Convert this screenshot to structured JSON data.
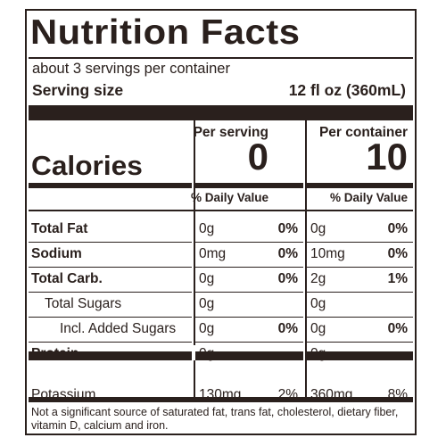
{
  "title": "Nutrition Facts",
  "servings_per_container": "about 3 servings per container",
  "serving_size": {
    "label": "Serving size",
    "value": "12 fl oz (360mL)"
  },
  "columns": {
    "per_serving": "Per serving",
    "per_container": "Per container"
  },
  "calories": {
    "label": "Calories",
    "per_serving": "0",
    "per_container": "10"
  },
  "daily_value_header": "% Daily Value",
  "nutrients": [
    {
      "name": "Total Fat",
      "serving_amount": "0g",
      "serving_dv": "0%",
      "container_amount": "0g",
      "container_dv": "0%"
    },
    {
      "name": "Sodium",
      "serving_amount": "0mg",
      "serving_dv": "0%",
      "container_amount": "10mg",
      "container_dv": "0%"
    },
    {
      "name": "Total Carb.",
      "serving_amount": "0g",
      "serving_dv": "0%",
      "container_amount": "2g",
      "container_dv": "1%"
    },
    {
      "name": "Total Sugars",
      "serving_amount": "0g",
      "serving_dv": "",
      "container_amount": "0g",
      "container_dv": ""
    },
    {
      "name": "Incl. Added Sugars",
      "serving_amount": "0g",
      "serving_dv": "0%",
      "container_amount": "0g",
      "container_dv": "0%"
    },
    {
      "name": "Protein",
      "serving_amount": "0g",
      "serving_dv": "",
      "container_amount": "0g",
      "container_dv": ""
    },
    {
      "name": "Potassium",
      "serving_amount": "130mg",
      "serving_dv": "2%",
      "container_amount": "360mg",
      "container_dv": "8%"
    }
  ],
  "footnote": "Not a significant source of saturated fat, trans fat, cholesterol, dietary fiber, vitamin D, calcium and iron.",
  "colors": {
    "ink": "#2a201d",
    "background": "#ffffff"
  }
}
